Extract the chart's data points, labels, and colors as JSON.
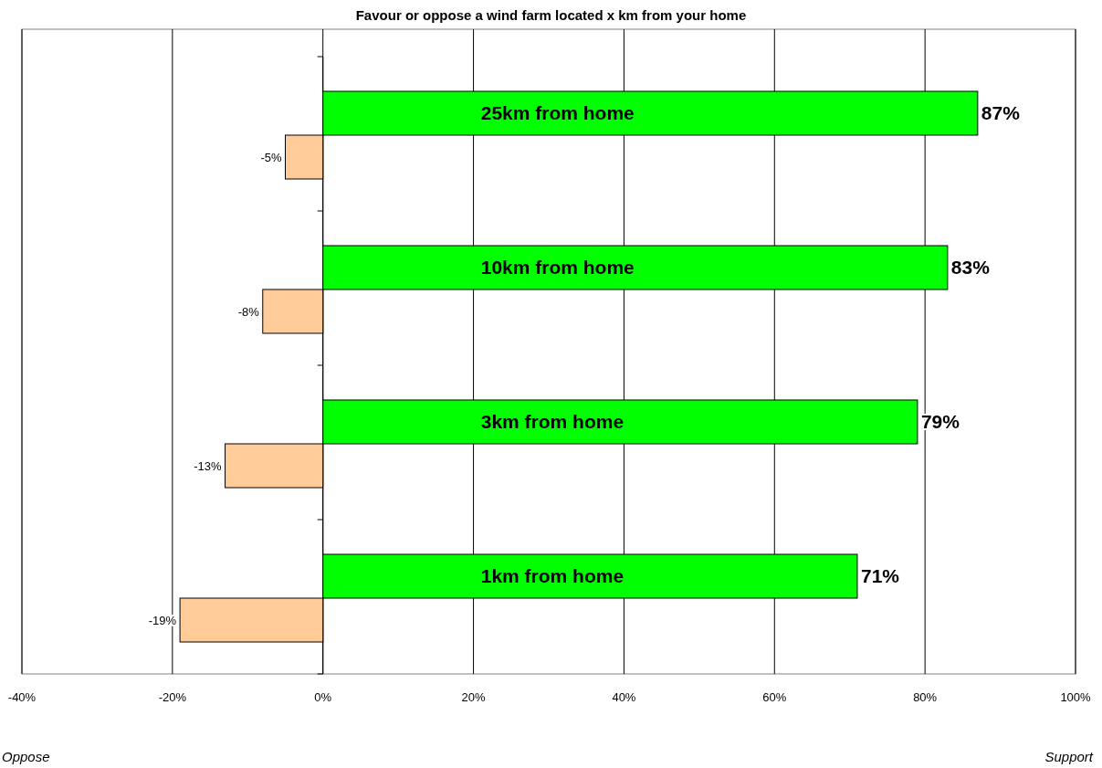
{
  "chart_data": {
    "type": "bar",
    "orientation": "horizontal",
    "title": "Favour or oppose a wind farm located x km from your home",
    "categories": [
      "25km from home",
      "10km from home",
      "3km from home",
      "1km from home"
    ],
    "series": [
      {
        "color": "#00ff00",
        "values": [
          87,
          83,
          79,
          71
        ],
        "value_labels": [
          "87%",
          "83%",
          "79%",
          "71%"
        ]
      },
      {
        "color": "#ffcc99",
        "values": [
          -5,
          -8,
          -13,
          -19
        ],
        "value_labels": [
          "-5%",
          "-8%",
          "-13%",
          "-19%"
        ]
      }
    ],
    "xlim": [
      -40,
      100
    ],
    "xticks": [
      {
        "value": -40,
        "label": "-40%"
      },
      {
        "value": -20,
        "label": "-20%"
      },
      {
        "value": 0,
        "label": "0%"
      },
      {
        "value": 20,
        "label": "20%"
      },
      {
        "value": 40,
        "label": "40%"
      },
      {
        "value": 60,
        "label": "60%"
      },
      {
        "value": 80,
        "label": "80%"
      },
      {
        "value": 100,
        "label": "100%"
      }
    ],
    "grid": "x",
    "annotations": [
      "Oppose",
      "Support"
    ]
  }
}
